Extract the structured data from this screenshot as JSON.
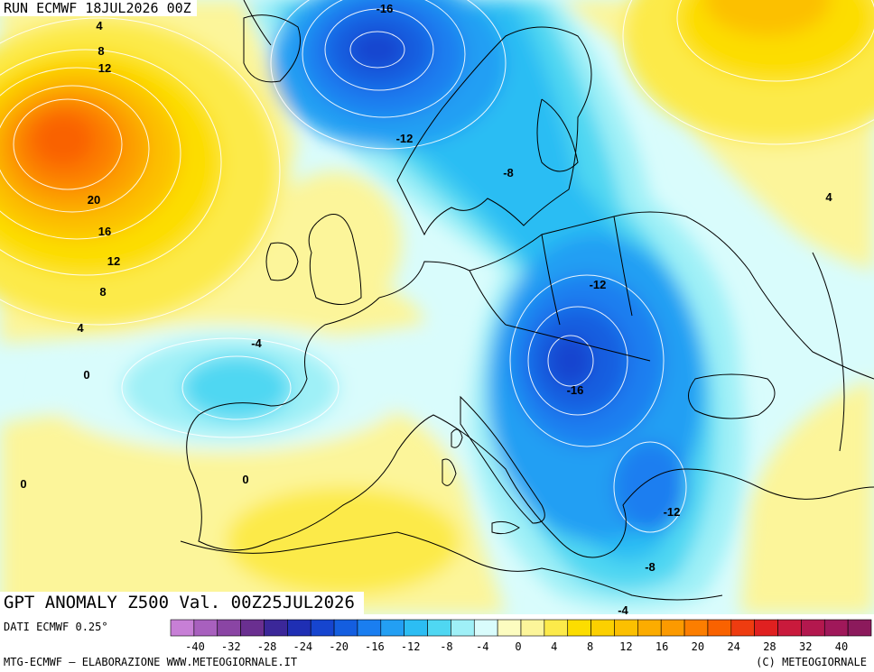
{
  "header": {
    "run_label": "RUN ECMWF 18JUL2026 00Z"
  },
  "map": {
    "title": "GPT ANOMALY Z500 Val. 00Z25JUL2026",
    "field": "500 hPa geopotential height anomaly",
    "contour_interval": 4,
    "contour_labels": [
      {
        "text": "4"
      },
      {
        "text": "8"
      },
      {
        "text": "12"
      },
      {
        "text": "20"
      },
      {
        "text": "16"
      },
      {
        "text": "12"
      },
      {
        "text": "8"
      },
      {
        "text": "4"
      },
      {
        "text": "0"
      },
      {
        "text": "0"
      },
      {
        "text": "-16"
      },
      {
        "text": "-12"
      },
      {
        "text": "-8"
      },
      {
        "text": "-4"
      },
      {
        "text": "0"
      },
      {
        "text": "-12"
      },
      {
        "text": "-16"
      },
      {
        "text": "-12"
      },
      {
        "text": "-8"
      },
      {
        "text": "-4"
      },
      {
        "text": "4"
      }
    ],
    "colors": {
      "coast": "#000000",
      "contour": "#ffffff"
    }
  },
  "colorbar": {
    "levels": [
      "-40",
      "-32",
      "-28",
      "-24",
      "-20",
      "-16",
      "-12",
      "-8",
      "-4",
      "0",
      "4",
      "8",
      "12",
      "16",
      "20",
      "24",
      "28",
      "32",
      "40"
    ],
    "colors": [
      "#c77fd6",
      "#a860be",
      "#8a45a4",
      "#6a2f90",
      "#3b2799",
      "#1f2fb4",
      "#1645cf",
      "#145ee0",
      "#1a7ef0",
      "#239ff3",
      "#2cbdf3",
      "#4fd7f2",
      "#9ff0f7",
      "#d9fcfc",
      "#fcfcc0",
      "#fcf59a",
      "#fcea4a",
      "#fcdd00",
      "#fcd000",
      "#fcc000",
      "#fcac00",
      "#fc9a00",
      "#fc7e00",
      "#f96200",
      "#ee3c10",
      "#e02020",
      "#c91a3c",
      "#b3184e",
      "#a0185a",
      "#8c1a5c"
    ]
  },
  "footer": {
    "data_source": "DATI ECMWF 0.25°",
    "credit": "MTG-ECMWF – ELABORAZIONE WWW.METEOGIORNALE.IT",
    "copyright": "(C) METEOGIORNALE"
  }
}
